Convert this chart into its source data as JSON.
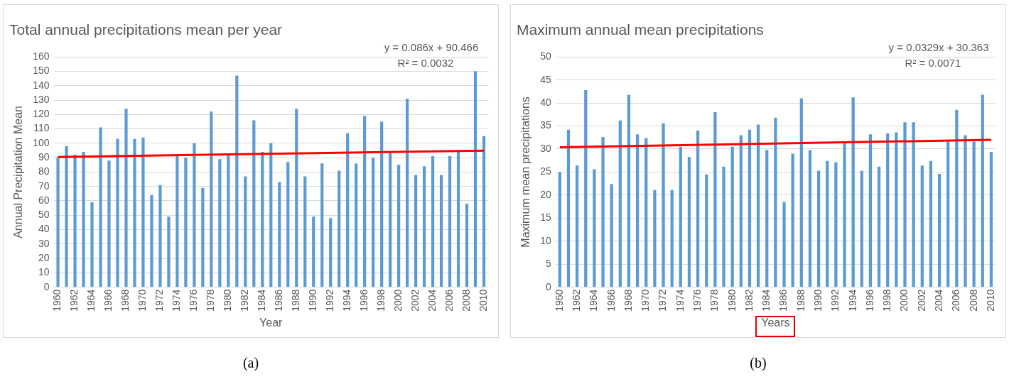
{
  "chart_data": [
    {
      "type": "bar",
      "title": "Total annual precipitations mean per year",
      "xlabel": "Year",
      "ylabel": "Annual Precipitation Mean",
      "categories": [
        "1960",
        null,
        "1962",
        null,
        "1964",
        null,
        "1966",
        null,
        "1968",
        null,
        "1970",
        null,
        "1972",
        null,
        "1974",
        null,
        "1976",
        null,
        "1978",
        null,
        "1980",
        null,
        "1982",
        null,
        "1984",
        null,
        "1986",
        null,
        "1988",
        null,
        "1990",
        null,
        "1992",
        null,
        "1994",
        null,
        "1996",
        null,
        "1998",
        null,
        "2000",
        null,
        "2002",
        null,
        "2004",
        null,
        "2006",
        null,
        "2008",
        null,
        "2010"
      ],
      "series": [
        {
          "color": "#5b9bd5",
          "values": [
            90,
            98,
            92,
            94,
            59,
            111,
            88,
            103,
            124,
            103,
            104,
            64,
            71,
            49,
            91,
            90,
            100,
            69,
            122,
            89,
            92,
            147,
            77,
            116,
            94,
            100,
            73,
            87,
            124,
            77,
            49,
            86,
            48,
            81,
            107,
            86,
            119,
            90,
            115,
            94,
            85,
            131,
            78,
            84,
            91,
            78,
            91,
            94,
            58,
            150,
            105
          ]
        },
        {
          "type": "line",
          "color": "#ff0000",
          "values": [
            90.5,
            null,
            null,
            null,
            null,
            null,
            null,
            null,
            null,
            null,
            null,
            null,
            null,
            null,
            null,
            null,
            null,
            null,
            null,
            null,
            null,
            null,
            null,
            null,
            null,
            null,
            null,
            null,
            null,
            null,
            null,
            null,
            null,
            null,
            null,
            null,
            null,
            null,
            null,
            null,
            null,
            null,
            null,
            null,
            null,
            null,
            null,
            null,
            null,
            null,
            94.9
          ]
        }
      ],
      "ylim": [
        0,
        160
      ],
      "yticks": [
        0,
        10,
        20,
        30,
        40,
        50,
        60,
        70,
        80,
        90,
        100,
        110,
        120,
        130,
        140,
        150,
        160
      ],
      "grid": "y",
      "legend": false,
      "annotations": [
        "y = 0.086x + 90.466",
        "R² = 0.0032",
        "(a)"
      ]
    },
    {
      "type": "bar",
      "title": "Maximum annual mean precipitations",
      "xlabel": "Years",
      "ylabel": "Maximum mean precipitations",
      "categories": [
        "1960",
        null,
        "1962",
        null,
        "1964",
        null,
        "1966",
        null,
        "1968",
        null,
        "1970",
        null,
        "1972",
        null,
        "1974",
        null,
        "1976",
        null,
        "1978",
        null,
        "1980",
        null,
        "1982",
        null,
        "1984",
        null,
        "1986",
        null,
        "1988",
        null,
        "1990",
        null,
        "1992",
        null,
        "1994",
        null,
        "1996",
        null,
        "1998",
        null,
        "2000",
        null,
        "2002",
        null,
        "2004",
        null,
        "2006",
        null,
        "2008",
        null,
        "2010"
      ],
      "series": [
        {
          "color": "#5b9bd5",
          "values": [
            25,
            34.2,
            26.4,
            42.8,
            25.6,
            32.6,
            22.4,
            36.2,
            41.8,
            33.2,
            32.4,
            21.1,
            35.6,
            21.1,
            30.5,
            28.3,
            34,
            24.5,
            38,
            26.2,
            30.5,
            33,
            34.2,
            35.3,
            29.8,
            36.8,
            18.5,
            29,
            41,
            29.8,
            25.3,
            27.4,
            27.1,
            31.5,
            41.2,
            25.3,
            33.2,
            26.2,
            33.4,
            33.6,
            35.8,
            35.8,
            26.4,
            27.4,
            24.6,
            31.6,
            38.5,
            33,
            31.6,
            41.8,
            29.4
          ]
        },
        {
          "type": "line",
          "color": "#ff0000",
          "values": [
            30.4,
            null,
            null,
            null,
            null,
            null,
            null,
            null,
            null,
            null,
            null,
            null,
            null,
            null,
            null,
            null,
            null,
            null,
            null,
            null,
            null,
            null,
            null,
            null,
            null,
            null,
            null,
            null,
            null,
            null,
            null,
            null,
            null,
            null,
            null,
            null,
            null,
            null,
            null,
            null,
            null,
            null,
            null,
            null,
            null,
            null,
            null,
            null,
            null,
            null,
            32
          ]
        }
      ],
      "ylim": [
        0,
        50
      ],
      "yticks": [
        0,
        5,
        10,
        15,
        20,
        25,
        30,
        35,
        40,
        45,
        50
      ],
      "grid": "y",
      "legend": false,
      "annotations": [
        "y = 0.0329x + 30.363",
        "R² = 0.0071",
        "(b)"
      ]
    }
  ]
}
